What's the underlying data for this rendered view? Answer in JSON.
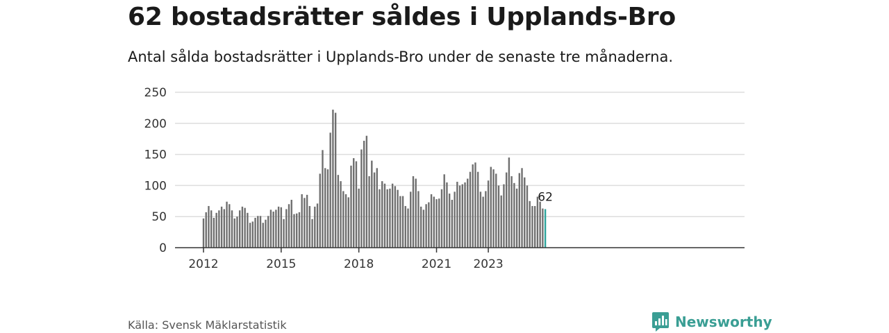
{
  "title": "62 bostadsrätter såldes i Upplands-Bro",
  "subtitle": "Antal sålda bostadsrätter i Upplands-Bro under de senaste tre månaderna.",
  "source": "Källa: Svensk Mäklarstatistik",
  "brand": "Newsworthy",
  "colors": {
    "bar": "#6f6f6f",
    "highlight": "#2ba39a",
    "grid": "#dddddd",
    "axis": "#333333",
    "brand": "#3a9e94"
  },
  "chart_data": {
    "type": "bar",
    "title": "",
    "xlabel": "",
    "ylabel": "",
    "ylim": [
      0,
      250
    ],
    "yticks": [
      0,
      50,
      100,
      150,
      200,
      250
    ],
    "xticks": [
      {
        "label": "2012",
        "index": 0
      },
      {
        "label": "2015",
        "index": 30
      },
      {
        "label": "2018",
        "index": 60
      },
      {
        "label": "2021",
        "index": 90
      },
      {
        "label": "2023",
        "index": 110
      }
    ],
    "grid": true,
    "highlight_label": "62",
    "values": [
      47,
      57,
      67,
      60,
      48,
      56,
      60,
      66,
      62,
      74,
      70,
      60,
      47,
      50,
      60,
      66,
      64,
      56,
      40,
      42,
      48,
      51,
      51,
      40,
      45,
      51,
      61,
      58,
      61,
      66,
      65,
      46,
      62,
      70,
      77,
      54,
      55,
      57,
      86,
      80,
      85,
      67,
      46,
      66,
      71,
      119,
      157,
      128,
      126,
      185,
      222,
      217,
      117,
      107,
      91,
      86,
      81,
      132,
      144,
      139,
      95,
      158,
      172,
      180,
      115,
      140,
      121,
      128,
      94,
      107,
      103,
      94,
      95,
      103,
      99,
      93,
      83,
      83,
      67,
      63,
      90,
      115,
      111,
      91,
      66,
      61,
      70,
      73,
      86,
      82,
      78,
      79,
      94,
      118,
      105,
      87,
      77,
      90,
      106,
      100,
      102,
      105,
      111,
      122,
      134,
      137,
      122,
      90,
      82,
      91,
      108,
      130,
      126,
      119,
      100,
      84,
      102,
      121,
      145,
      115,
      104,
      95,
      120,
      128,
      113,
      100,
      75,
      67,
      67,
      82,
      74,
      63,
      62
    ]
  }
}
